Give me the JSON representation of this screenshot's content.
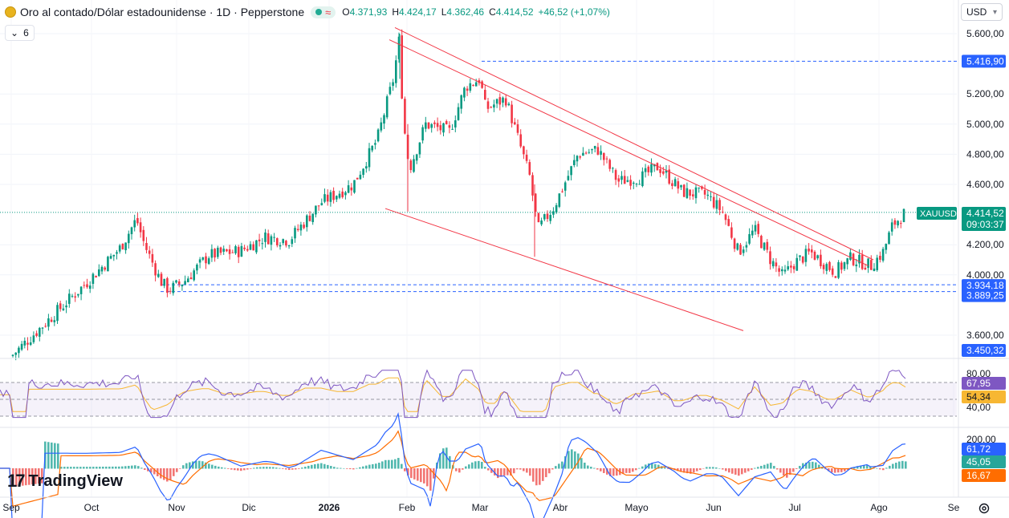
{
  "header": {
    "title": "Oro al contado/Dólar estadounidense · 1D · Pepperstone",
    "ohlc": [
      {
        "label": "O",
        "value": "4.371,93"
      },
      {
        "label": "H",
        "value": "4.424,17"
      },
      {
        "label": "L",
        "value": "4.362,46"
      },
      {
        "label": "C",
        "value": "4.414,52"
      },
      {
        "label": "",
        "value": "+46,52 (+1,07%)"
      }
    ],
    "indicator_count": "6",
    "currency": "USD",
    "up_color": "#089981",
    "down_color": "#f23645"
  },
  "branding": {
    "logo_text": "TradingView"
  },
  "chart_data": {
    "type": "candlestick",
    "symbol": "XAUUSD",
    "interval": "1D",
    "x_axis_labels": [
      "Sep",
      "Oct",
      "Nov",
      "Dic",
      "2026",
      "Feb",
      "Mar",
      "Abr",
      "Mayo",
      "Jun",
      "Jul",
      "Ago",
      "Se"
    ],
    "price_ticks": [
      "5.600,00",
      "5.200,00",
      "5.000,00",
      "4.800,00",
      "4.600,00",
      "4.200,00",
      "4.000,00",
      "3.600,00"
    ],
    "price_range": [
      3450,
      5650
    ],
    "last_price_label": "4.414,52",
    "countdown": "09:03:37",
    "symbol_badge": "XAUUSD",
    "price_labels": [
      "5.416,90",
      "3.934,18",
      "3.889,25",
      "3.450,32"
    ],
    "key_points": [
      {
        "date": "Sep",
        "price": 3460
      },
      {
        "date": "Oct end",
        "price": 4370
      },
      {
        "date": "Nov start",
        "price": 3890
      },
      {
        "date": "Feb peak",
        "price": 5600
      },
      {
        "date": "Feb low",
        "price": 4400
      },
      {
        "date": "Mar peak",
        "price": 5417
      },
      {
        "date": "Mar low",
        "price": 4100
      },
      {
        "date": "May",
        "price": 4870
      },
      {
        "date": "Jul low",
        "price": 3934
      },
      {
        "date": "Ago last",
        "price": 4414.52
      }
    ],
    "horizontal_levels": [
      5416.9,
      3934.18,
      3889.25
    ],
    "trendlines": [
      {
        "from": [
          "Feb",
          5640
        ],
        "to": [
          "Jul end",
          4100
        ]
      },
      {
        "from": [
          "Feb",
          5560
        ],
        "to": [
          "Jul end",
          4060
        ]
      },
      {
        "from": [
          "Feb start",
          4440
        ],
        "to": [
          "Abr end",
          3630
        ]
      }
    ],
    "rsi": {
      "ticks": [
        "80,00",
        "40,00"
      ],
      "value": "67,95",
      "ma_value": "54,34",
      "bands": [
        70,
        30
      ]
    },
    "macd": {
      "ticks": [
        "200,00"
      ],
      "macd_value": "61,72",
      "histogram_value": "45,05",
      "signal_value": "16,67"
    }
  }
}
